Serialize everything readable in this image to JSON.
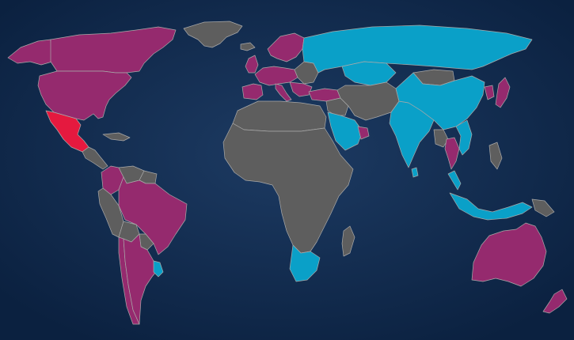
{
  "map": {
    "background": {
      "inner": "#1d3b63",
      "outer": "#0b2140"
    },
    "border_color": "#a9a9a9",
    "fills": {
      "magenta": "#952a6e",
      "red": "#e5193f",
      "cyan": "#0aa0c8",
      "gray": "#5e5e5e"
    },
    "regions": [
      {
        "name": "greenland-region",
        "fill": "gray"
      },
      {
        "name": "canada-region",
        "fill": "magenta"
      },
      {
        "name": "alaska-region",
        "fill": "magenta"
      },
      {
        "name": "usa-region",
        "fill": "magenta"
      },
      {
        "name": "mexico-region",
        "fill": "red"
      },
      {
        "name": "central-america-region",
        "fill": "gray"
      },
      {
        "name": "caribbean-region",
        "fill": "gray"
      },
      {
        "name": "colombia-region",
        "fill": "magenta"
      },
      {
        "name": "venezuela-region",
        "fill": "gray"
      },
      {
        "name": "guianas-region",
        "fill": "gray"
      },
      {
        "name": "ecuador-peru-region",
        "fill": "gray"
      },
      {
        "name": "brazil-region",
        "fill": "magenta"
      },
      {
        "name": "bolivia-region",
        "fill": "gray"
      },
      {
        "name": "paraguay-region",
        "fill": "gray"
      },
      {
        "name": "chile-region",
        "fill": "magenta"
      },
      {
        "name": "argentina-region",
        "fill": "magenta"
      },
      {
        "name": "uruguay-region",
        "fill": "cyan"
      },
      {
        "name": "iceland-region",
        "fill": "gray"
      },
      {
        "name": "uk-ireland-region",
        "fill": "magenta"
      },
      {
        "name": "scandinavia-region",
        "fill": "magenta"
      },
      {
        "name": "western-europe-region",
        "fill": "magenta"
      },
      {
        "name": "iberia-region",
        "fill": "magenta"
      },
      {
        "name": "italy-region",
        "fill": "magenta"
      },
      {
        "name": "eastern-europe-region",
        "fill": "gray"
      },
      {
        "name": "balkans-region",
        "fill": "magenta"
      },
      {
        "name": "russia-region",
        "fill": "cyan"
      },
      {
        "name": "kazakhstan-region",
        "fill": "cyan"
      },
      {
        "name": "turkey-region",
        "fill": "magenta"
      },
      {
        "name": "middle-east-region",
        "fill": "gray"
      },
      {
        "name": "saudi-arabia-region",
        "fill": "cyan"
      },
      {
        "name": "gulf-states-region",
        "fill": "magenta"
      },
      {
        "name": "iran-central-asia-region",
        "fill": "gray"
      },
      {
        "name": "india-region",
        "fill": "cyan"
      },
      {
        "name": "sri-lanka-region",
        "fill": "cyan"
      },
      {
        "name": "mongolia-region",
        "fill": "gray"
      },
      {
        "name": "china-region",
        "fill": "cyan"
      },
      {
        "name": "korea-region",
        "fill": "magenta"
      },
      {
        "name": "japan-region",
        "fill": "magenta"
      },
      {
        "name": "southeast-asia-region",
        "fill": "gray"
      },
      {
        "name": "thailand-region",
        "fill": "magenta"
      },
      {
        "name": "vietnam-region",
        "fill": "cyan"
      },
      {
        "name": "malaysia-region",
        "fill": "cyan"
      },
      {
        "name": "philippines-region",
        "fill": "gray"
      },
      {
        "name": "indonesia-region",
        "fill": "cyan"
      },
      {
        "name": "papua-region",
        "fill": "gray"
      },
      {
        "name": "north-africa-region",
        "fill": "gray"
      },
      {
        "name": "africa-region",
        "fill": "gray"
      },
      {
        "name": "south-africa-region",
        "fill": "cyan"
      },
      {
        "name": "madagascar-region",
        "fill": "gray"
      },
      {
        "name": "australia-region",
        "fill": "magenta"
      },
      {
        "name": "new-zealand-region",
        "fill": "magenta"
      }
    ]
  }
}
